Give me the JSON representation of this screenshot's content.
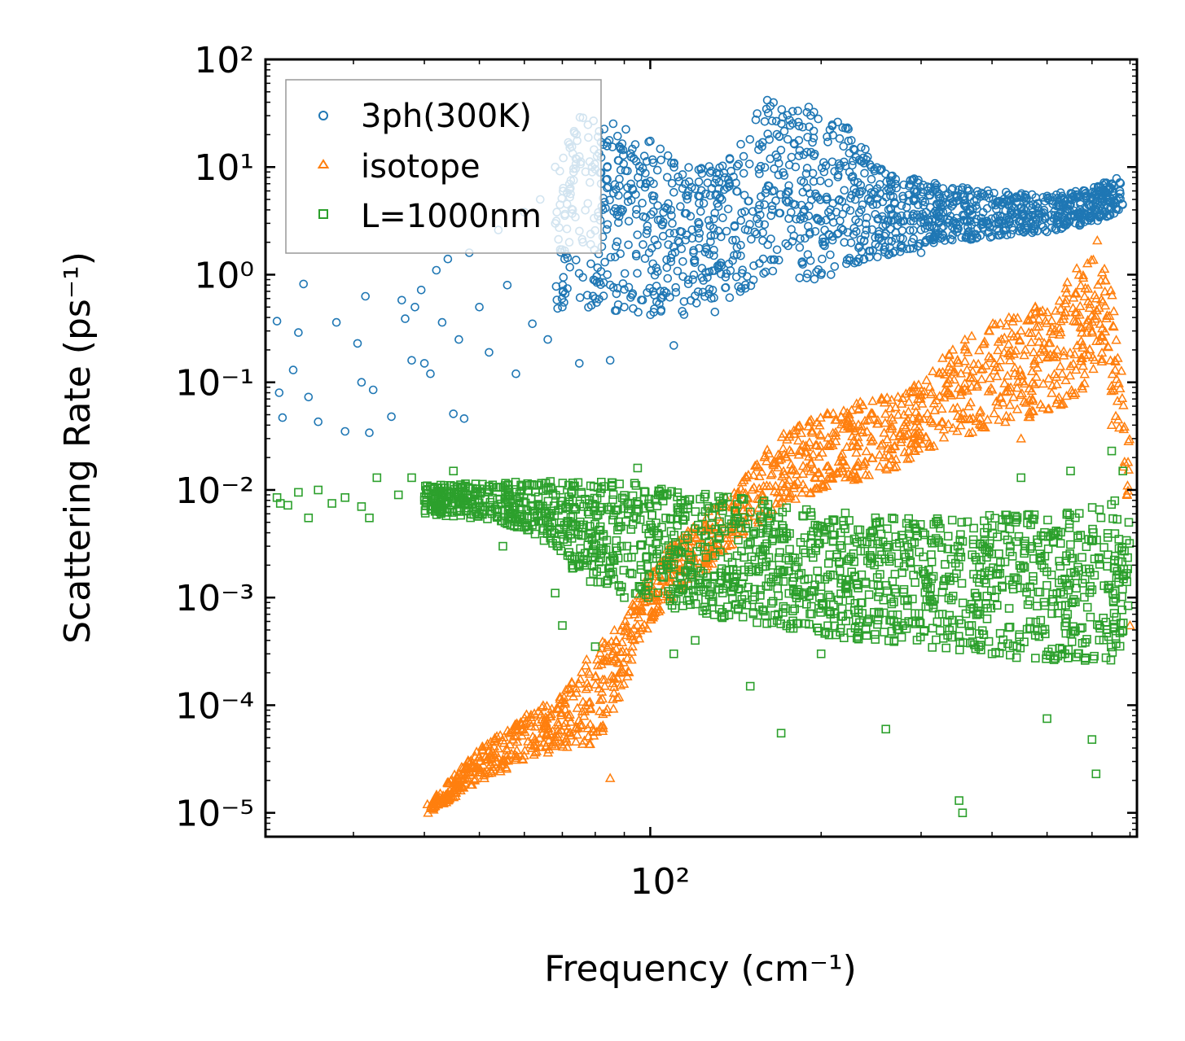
{
  "chart_data": {
    "type": "scatter",
    "xscale": "log",
    "yscale": "log",
    "xlim": [
      21,
      720
    ],
    "ylim": [
      6e-06,
      100
    ],
    "xlabel": "Frequency (cm⁻¹)",
    "ylabel": "Scattering Rate (ps⁻¹)",
    "x_major_ticks": [
      {
        "value": 100,
        "label": "10²"
      }
    ],
    "y_major_ticks": [
      {
        "value": 1e-05,
        "label": "10⁻⁵"
      },
      {
        "value": 0.0001,
        "label": "10⁻⁴"
      },
      {
        "value": 0.001,
        "label": "10⁻³"
      },
      {
        "value": 0.01,
        "label": "10⁻²"
      },
      {
        "value": 0.1,
        "label": "10⁻¹"
      },
      {
        "value": 1,
        "label": "10⁰"
      },
      {
        "value": 10,
        "label": "10¹"
      },
      {
        "value": 100,
        "label": "10²"
      }
    ],
    "legend_position": "top-left",
    "series": [
      {
        "name": "3ph(300K)",
        "marker": "circle",
        "color": "#1f77b4",
        "points": [
          [
            22.0,
            0.37
          ],
          [
            22.2,
            0.08
          ],
          [
            22.5,
            0.047
          ],
          [
            23.5,
            0.13
          ],
          [
            24.0,
            0.29
          ],
          [
            24.5,
            0.82
          ],
          [
            25.0,
            0.073
          ],
          [
            26.0,
            0.043
          ],
          [
            28.0,
            0.36
          ],
          [
            29.0,
            0.035
          ],
          [
            30.5,
            0.23
          ],
          [
            31.0,
            0.1
          ],
          [
            31.5,
            0.63
          ],
          [
            32.0,
            0.034
          ],
          [
            32.5,
            0.085
          ],
          [
            35.0,
            0.048
          ],
          [
            36.5,
            0.58
          ],
          [
            37.0,
            0.39
          ],
          [
            38.0,
            0.16
          ],
          [
            38.5,
            0.5
          ],
          [
            39.5,
            0.72
          ],
          [
            40.0,
            0.15
          ],
          [
            41.0,
            0.12
          ],
          [
            42.0,
            1.1
          ],
          [
            43.0,
            0.36
          ],
          [
            44.0,
            1.4
          ],
          [
            45.0,
            0.051
          ],
          [
            46.0,
            0.25
          ],
          [
            47.0,
            0.046
          ],
          [
            48.0,
            1.6
          ],
          [
            50.0,
            0.5
          ],
          [
            52.0,
            0.19
          ],
          [
            54.0,
            2.6
          ],
          [
            56.0,
            0.8
          ],
          [
            58.0,
            0.12
          ],
          [
            60.0,
            3.8
          ],
          [
            62.0,
            0.35
          ],
          [
            64.0,
            5.0
          ],
          [
            66.0,
            0.25
          ],
          [
            68.0,
            10.0
          ],
          [
            70.0,
            0.5
          ],
          [
            72.0,
            2.0
          ],
          [
            75.0,
            0.15
          ],
          [
            80.0,
            0.6
          ],
          [
            85.0,
            0.16
          ],
          [
            90.0,
            0.5
          ],
          [
            110.0,
            0.22
          ],
          [
            130.0,
            0.45
          ],
          [
            200.0,
            1.0
          ],
          [
            300.0,
            1.6
          ],
          [
            500.0,
            2.5
          ]
        ],
        "density_band": [
          [
            68,
            0.45,
            27
          ],
          [
            80,
            0.5,
            32
          ],
          [
            95,
            0.42,
            22
          ],
          [
            110,
            0.4,
            12
          ],
          [
            130,
            0.5,
            10
          ],
          [
            145,
            0.7,
            18
          ],
          [
            160,
            0.9,
            48
          ],
          [
            175,
            0.9,
            42
          ],
          [
            195,
            0.8,
            35
          ],
          [
            220,
            1.2,
            25
          ],
          [
            260,
            1.5,
            9
          ],
          [
            320,
            2.0,
            7
          ],
          [
            400,
            2.2,
            6
          ],
          [
            500,
            2.5,
            5.5
          ],
          [
            600,
            3.0,
            6.5
          ],
          [
            680,
            4.0,
            8.5
          ]
        ]
      },
      {
        "name": "isotope",
        "marker": "triangle",
        "color": "#ff7f0e",
        "points": [
          [
            40.5,
            1.2e-05
          ],
          [
            40.6,
            1e-05
          ],
          [
            44.0,
            1.3e-05
          ],
          [
            85.0,
            2.1e-05
          ],
          [
            100.0,
            0.001
          ],
          [
            260.0,
            0.016
          ],
          [
            450.0,
            0.03
          ],
          [
            600.0,
            0.3
          ],
          [
            650.0,
            0.04
          ],
          [
            700.0,
            0.00055
          ]
        ],
        "density_band": [
          [
            41,
            1e-05,
            1.3e-05
          ],
          [
            50,
            2e-05,
            4e-05
          ],
          [
            60,
            3e-05,
            8e-05
          ],
          [
            70,
            4e-05,
            0.00013
          ],
          [
            80,
            4e-05,
            0.00035
          ],
          [
            90,
            0.00015,
            0.0006
          ],
          [
            100,
            0.0006,
            0.002
          ],
          [
            120,
            0.0015,
            0.005
          ],
          [
            140,
            0.003,
            0.01
          ],
          [
            165,
            0.006,
            0.03
          ],
          [
            200,
            0.01,
            0.05
          ],
          [
            260,
            0.015,
            0.08
          ],
          [
            300,
            0.02,
            0.1
          ],
          [
            350,
            0.03,
            0.25
          ],
          [
            420,
            0.04,
            0.4
          ],
          [
            520,
            0.05,
            0.6
          ],
          [
            580,
            0.08,
            1.5
          ],
          [
            610,
            0.15,
            2.3
          ],
          [
            640,
            0.1,
            1.2
          ],
          [
            670,
            0.03,
            0.25
          ],
          [
            700,
            0.005,
            0.03
          ]
        ]
      },
      {
        "name": "L=1000nm",
        "marker": "square",
        "color": "#2ca02c",
        "points": [
          [
            22.0,
            0.0085
          ],
          [
            22.3,
            0.0075
          ],
          [
            23.0,
            0.0072
          ],
          [
            24.0,
            0.0095
          ],
          [
            25.0,
            0.0055
          ],
          [
            26.0,
            0.01
          ],
          [
            27.5,
            0.0075
          ],
          [
            29.0,
            0.0085
          ],
          [
            31.0,
            0.007
          ],
          [
            32.0,
            0.0055
          ],
          [
            33.0,
            0.013
          ],
          [
            36.0,
            0.009
          ],
          [
            38.0,
            0.013
          ],
          [
            40.0,
            0.008
          ],
          [
            45.0,
            0.015
          ],
          [
            50.0,
            0.006
          ],
          [
            55.0,
            0.003
          ],
          [
            60.0,
            0.0045
          ],
          [
            68.0,
            0.0011
          ],
          [
            70.0,
            0.00055
          ],
          [
            80.0,
            0.00035
          ],
          [
            90.0,
            0.001
          ],
          [
            95.0,
            0.016
          ],
          [
            110.0,
            0.0003
          ],
          [
            120.0,
            0.0004
          ],
          [
            150.0,
            0.00015
          ],
          [
            170.0,
            5.5e-05
          ],
          [
            200.0,
            0.0003
          ],
          [
            260.0,
            6e-05
          ],
          [
            350.0,
            1.3e-05
          ],
          [
            355.0,
            1e-05
          ],
          [
            400.0,
            0.0003
          ],
          [
            450.0,
            0.013
          ],
          [
            500.0,
            7.5e-05
          ],
          [
            550.0,
            0.015
          ],
          [
            600.0,
            4.8e-05
          ],
          [
            610.0,
            2.3e-05
          ],
          [
            650.0,
            0.023
          ],
          [
            680.0,
            0.015
          ]
        ],
        "density_band": [
          [
            40,
            0.006,
            0.011
          ],
          [
            55,
            0.005,
            0.012
          ],
          [
            68,
            0.003,
            0.012
          ],
          [
            75,
            0.0015,
            0.012
          ],
          [
            90,
            0.0011,
            0.012
          ],
          [
            110,
            0.0008,
            0.01
          ],
          [
            140,
            0.0006,
            0.009
          ],
          [
            180,
            0.0005,
            0.007
          ],
          [
            230,
            0.0004,
            0.006
          ],
          [
            300,
            0.00035,
            0.0055
          ],
          [
            400,
            0.0003,
            0.006
          ],
          [
            500,
            0.00025,
            0.006
          ],
          [
            600,
            0.00025,
            0.007
          ],
          [
            660,
            0.00025,
            0.008
          ],
          [
            700,
            0.0004,
            0.005
          ]
        ]
      }
    ]
  }
}
